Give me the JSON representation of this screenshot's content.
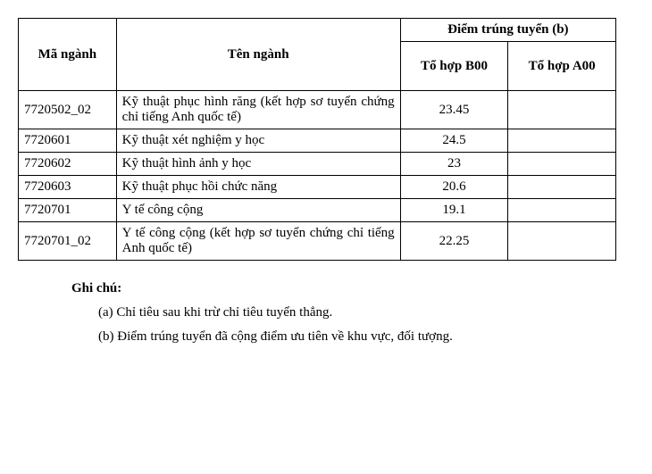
{
  "headers": {
    "ma": "Mã ngành",
    "ten": "Tên ngành",
    "diem": "Điểm trúng tuyển (b)",
    "b00": "Tổ hợp B00",
    "a00": "Tổ hợp A00"
  },
  "rows": [
    {
      "ma": "7720502_02",
      "ten": "Kỹ thuật phục hình răng (kết hợp sơ tuyển chứng chỉ tiếng Anh quốc tế)",
      "b00": "23.45",
      "a00": ""
    },
    {
      "ma": "7720601",
      "ten": "Kỹ thuật xét nghiệm y học",
      "b00": "24.5",
      "a00": ""
    },
    {
      "ma": "7720602",
      "ten": "Kỹ thuật hình ảnh y học",
      "b00": "23",
      "a00": ""
    },
    {
      "ma": "7720603",
      "ten": "Kỹ thuật phục hồi chức năng",
      "b00": "20.6",
      "a00": ""
    },
    {
      "ma": "7720701",
      "ten": "Y tế công cộng",
      "b00": "19.1",
      "a00": ""
    },
    {
      "ma": "7720701_02",
      "ten": "Y tế công cộng (kết hợp sơ tuyển chứng chỉ tiếng Anh quốc tế)",
      "b00": "22.25",
      "a00": ""
    }
  ],
  "notes": {
    "title": "Ghi chú:",
    "a": "(a) Chỉ tiêu sau khi trừ chỉ tiêu tuyển thẳng.",
    "b": "(b) Điểm trúng tuyển đã cộng điểm ưu tiên về khu vực, đối tượng."
  }
}
